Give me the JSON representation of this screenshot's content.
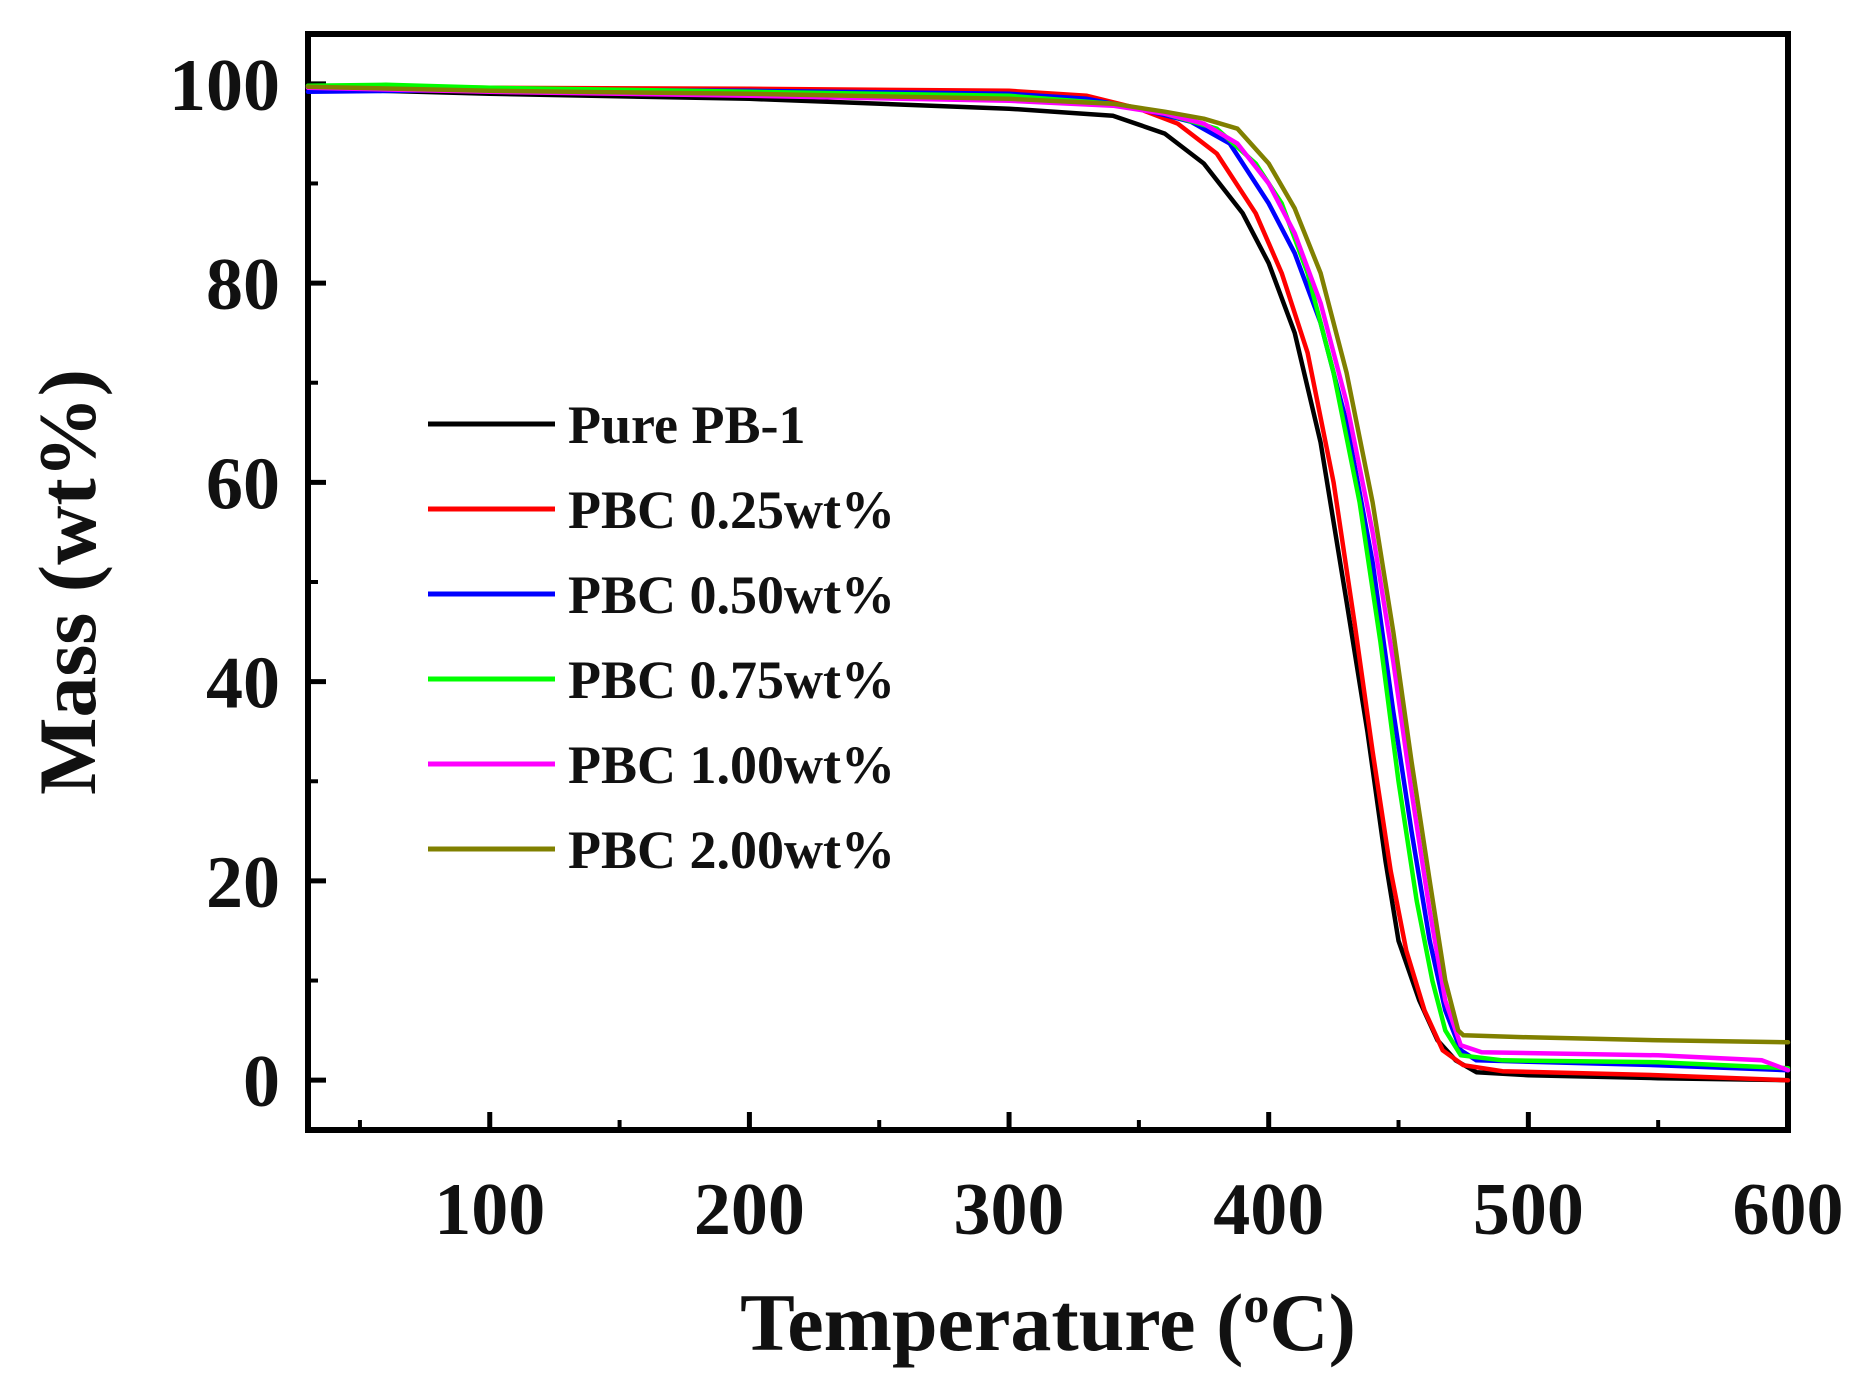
{
  "chart_data": {
    "type": "line",
    "xlabel": "Temperature (",
    "xlabel_sup": "o",
    "xlabel_end": "C)",
    "ylabel": "Mass (wt%)",
    "xlim": [
      30,
      600
    ],
    "ylim": [
      -5,
      105
    ],
    "xticks": [
      100,
      200,
      300,
      400,
      500,
      600
    ],
    "yticks": [
      0,
      20,
      40,
      60,
      80,
      100
    ],
    "legend_position": "center-left",
    "series": [
      {
        "name": "Pure PB-1",
        "color": "#000000",
        "points": [
          [
            30,
            99.5
          ],
          [
            100,
            99
          ],
          [
            200,
            98.5
          ],
          [
            300,
            97.5
          ],
          [
            340,
            96.8
          ],
          [
            360,
            95
          ],
          [
            375,
            92
          ],
          [
            390,
            87
          ],
          [
            400,
            82
          ],
          [
            410,
            75
          ],
          [
            420,
            64
          ],
          [
            430,
            48
          ],
          [
            438,
            35
          ],
          [
            445,
            22
          ],
          [
            450,
            14
          ],
          [
            458,
            8
          ],
          [
            465,
            4
          ],
          [
            472,
            2
          ],
          [
            480,
            0.8
          ],
          [
            500,
            0.5
          ],
          [
            550,
            0.2
          ],
          [
            600,
            0
          ]
        ]
      },
      {
        "name": "PBC 0.25wt%",
        "color": "#ff0000",
        "points": [
          [
            30,
            99.8
          ],
          [
            100,
            99.6
          ],
          [
            200,
            99.5
          ],
          [
            300,
            99.3
          ],
          [
            330,
            98.8
          ],
          [
            350,
            97.5
          ],
          [
            365,
            96
          ],
          [
            380,
            93
          ],
          [
            395,
            87
          ],
          [
            405,
            81
          ],
          [
            415,
            73
          ],
          [
            425,
            60
          ],
          [
            433,
            46
          ],
          [
            440,
            33
          ],
          [
            447,
            21
          ],
          [
            453,
            13
          ],
          [
            460,
            7
          ],
          [
            467,
            3
          ],
          [
            475,
            1.5
          ],
          [
            490,
            0.9
          ],
          [
            550,
            0.5
          ],
          [
            600,
            0
          ]
        ]
      },
      {
        "name": "PBC 0.50wt%",
        "color": "#0000ff",
        "points": [
          [
            30,
            99.2
          ],
          [
            100,
            99.4
          ],
          [
            200,
            99.3
          ],
          [
            300,
            99
          ],
          [
            330,
            98.5
          ],
          [
            350,
            97.5
          ],
          [
            370,
            96.2
          ],
          [
            385,
            94
          ],
          [
            400,
            88
          ],
          [
            410,
            83
          ],
          [
            420,
            76
          ],
          [
            430,
            66
          ],
          [
            440,
            52
          ],
          [
            448,
            37
          ],
          [
            455,
            25
          ],
          [
            462,
            14
          ],
          [
            468,
            7
          ],
          [
            474,
            3
          ],
          [
            480,
            2
          ],
          [
            550,
            1.5
          ],
          [
            600,
            1
          ]
        ]
      },
      {
        "name": "PBC 0.75wt%",
        "color": "#00ff00",
        "points": [
          [
            30,
            99.8
          ],
          [
            60,
            99.9
          ],
          [
            100,
            99.6
          ],
          [
            200,
            99.2
          ],
          [
            300,
            98.8
          ],
          [
            340,
            98
          ],
          [
            360,
            97
          ],
          [
            380,
            95.5
          ],
          [
            395,
            92
          ],
          [
            405,
            88
          ],
          [
            415,
            81
          ],
          [
            425,
            71
          ],
          [
            435,
            58
          ],
          [
            443,
            44
          ],
          [
            450,
            30
          ],
          [
            457,
            18
          ],
          [
            463,
            10
          ],
          [
            468,
            5
          ],
          [
            474,
            2.5
          ],
          [
            490,
            2
          ],
          [
            550,
            1.8
          ],
          [
            600,
            1.2
          ]
        ]
      },
      {
        "name": "PBC 1.00wt%",
        "color": "#ff00ff",
        "points": [
          [
            30,
            99.6
          ],
          [
            100,
            99.2
          ],
          [
            200,
            98.8
          ],
          [
            300,
            98.3
          ],
          [
            340,
            97.8
          ],
          [
            360,
            97
          ],
          [
            375,
            96
          ],
          [
            388,
            94
          ],
          [
            400,
            90
          ],
          [
            410,
            85
          ],
          [
            420,
            78
          ],
          [
            430,
            68
          ],
          [
            440,
            55
          ],
          [
            448,
            42
          ],
          [
            455,
            29
          ],
          [
            462,
            17
          ],
          [
            468,
            8
          ],
          [
            474,
            3.5
          ],
          [
            482,
            2.8
          ],
          [
            550,
            2.5
          ],
          [
            590,
            2
          ],
          [
            600,
            1
          ]
        ]
      },
      {
        "name": "PBC 2.00wt%",
        "color": "#808000",
        "points": [
          [
            30,
            99.7
          ],
          [
            100,
            99.3
          ],
          [
            200,
            99
          ],
          [
            300,
            98.5
          ],
          [
            340,
            98
          ],
          [
            360,
            97.2
          ],
          [
            375,
            96.5
          ],
          [
            388,
            95.5
          ],
          [
            400,
            92
          ],
          [
            410,
            87.5
          ],
          [
            420,
            81
          ],
          [
            430,
            71
          ],
          [
            440,
            58
          ],
          [
            448,
            45
          ],
          [
            455,
            32
          ],
          [
            462,
            20
          ],
          [
            468,
            10
          ],
          [
            473,
            5
          ],
          [
            475,
            4.5
          ],
          [
            500,
            4.3
          ],
          [
            550,
            4
          ],
          [
            600,
            3.8
          ]
        ]
      }
    ]
  }
}
